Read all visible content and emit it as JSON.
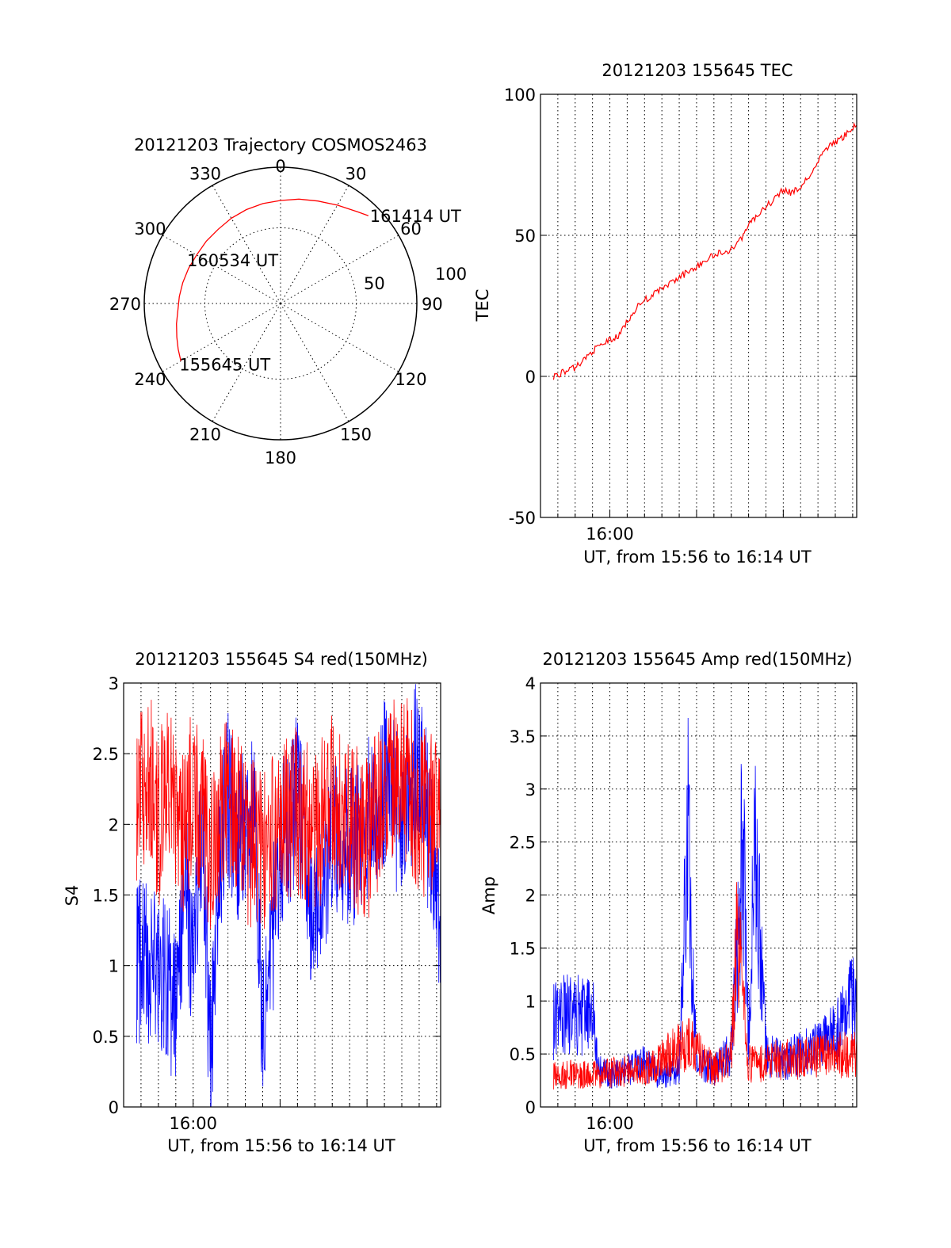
{
  "chart_data": [
    {
      "type": "polar",
      "title": "20121203 Trajectory COSMOS2463",
      "azimuth_labels": [
        "0",
        "30",
        "60",
        "90",
        "120",
        "150",
        "180",
        "210",
        "240",
        "270",
        "300",
        "330"
      ],
      "radial_labels": [
        "50",
        "100"
      ],
      "radial_range": [
        0,
        90
      ],
      "grid": true,
      "series": [
        {
          "color": "#ff0000",
          "azimuth": [
            240,
            246,
            252,
            259,
            266,
            274,
            282,
            291,
            300,
            310,
            320,
            330,
            340,
            350,
            0,
            10,
            20,
            30,
            40,
            45
          ],
          "zenith": [
            76,
            74,
            72,
            70,
            68,
            67,
            66,
            65,
            64,
            64,
            64,
            65,
            66,
            67,
            68,
            70,
            72,
            75,
            79,
            82
          ]
        }
      ],
      "annotations": [
        {
          "text": "155645 UT",
          "azimuth": 240,
          "zenith": 76
        },
        {
          "text": "160534 UT",
          "azimuth": 300,
          "zenith": 64
        },
        {
          "text": "161414 UT",
          "azimuth": 45,
          "zenith": 82
        }
      ]
    },
    {
      "type": "line",
      "title": "20121203 155645 TEC",
      "xlabel": "UT, from 15:56 to 16:14 UT",
      "ylabel": "TEC",
      "xlim": [
        "15:56:00",
        "16:14:14"
      ],
      "ylim": [
        -50,
        100
      ],
      "yticks": [
        "-50",
        "0",
        "50",
        "100"
      ],
      "xticks": [
        {
          "label": "16:00",
          "value": "16:00:00"
        }
      ],
      "grid": true,
      "series": [
        {
          "color": "#ff0000",
          "x": [
            "15:56:45",
            "15:57:30",
            "15:58:00",
            "15:58:30",
            "15:59:00",
            "15:59:30",
            "16:00:00",
            "16:00:30",
            "16:00:50",
            "16:01:30",
            "16:02:00",
            "16:02:30",
            "16:03:00",
            "16:03:30",
            "16:04:00",
            "16:04:30",
            "16:05:00",
            "16:05:30",
            "16:06:00",
            "16:06:30",
            "16:07:00",
            "16:07:30",
            "16:08:00",
            "16:08:30",
            "16:09:00",
            "16:09:30",
            "16:10:00",
            "16:10:30",
            "16:11:00",
            "16:11:30",
            "16:12:00",
            "16:12:30",
            "16:13:00",
            "16:13:30",
            "16:14:14"
          ],
          "y": [
            0,
            2,
            3,
            6,
            9,
            11,
            13,
            14,
            18,
            24,
            27,
            29,
            31,
            33,
            35,
            37,
            39,
            41,
            43,
            44,
            45,
            48,
            54,
            57,
            60,
            63,
            66,
            65,
            67,
            71,
            76,
            81,
            83,
            85,
            90
          ]
        }
      ]
    },
    {
      "type": "line",
      "title": "20121203 155645 S4 red(150MHz)",
      "xlabel": "UT, from 15:56 to 16:14 UT",
      "ylabel": "S4",
      "xlim": [
        "15:56:00",
        "16:14:14"
      ],
      "ylim": [
        0,
        3
      ],
      "yticks": [
        "0",
        "0.5",
        "1",
        "1.5",
        "2",
        "2.5",
        "3"
      ],
      "xticks": [
        {
          "label": "16:00",
          "value": "16:00:00"
        }
      ],
      "grid": true,
      "series": [
        {
          "color": "#0000ff",
          "x": [
            "15:56:45",
            "15:57:30",
            "15:58:00",
            "15:58:30",
            "15:59:00",
            "15:59:30",
            "16:00:00",
            "16:00:30",
            "16:01:00",
            "16:01:30",
            "16:02:00",
            "16:02:30",
            "16:03:00",
            "16:03:30",
            "16:04:00",
            "16:05:00",
            "16:06:00",
            "16:07:00",
            "16:08:00",
            "16:09:00",
            "16:10:00",
            "16:11:00",
            "16:12:00",
            "16:13:00",
            "16:14:14"
          ],
          "y": [
            1.05,
            1.0,
            0.95,
            0.9,
            0.6,
            1.6,
            1.0,
            2.0,
            0.3,
            1.7,
            2.2,
            1.8,
            2.0,
            2.2,
            0.45,
            1.8,
            2.2,
            1.2,
            2.0,
            1.8,
            2.0,
            2.3,
            2.0,
            2.5,
            1.2
          ]
        },
        {
          "color": "#ff0000",
          "x": [
            "15:56:45",
            "15:57:30",
            "15:58:00",
            "15:58:30",
            "15:59:00",
            "15:59:30",
            "16:00:00",
            "16:01:00",
            "16:02:00",
            "16:03:00",
            "16:04:00",
            "16:05:00",
            "16:06:00",
            "16:07:00",
            "16:08:00",
            "16:09:00",
            "16:10:00",
            "16:11:00",
            "16:12:00",
            "16:13:00",
            "16:14:14"
          ],
          "y": [
            2.2,
            2.4,
            2.0,
            2.3,
            2.1,
            1.9,
            2.3,
            1.8,
            2.2,
            1.9,
            1.8,
            2.0,
            2.1,
            1.9,
            2.2,
            2.0,
            1.9,
            2.2,
            2.4,
            2.1,
            2.0
          ]
        }
      ]
    },
    {
      "type": "line",
      "title": "20121203 155645 Amp red(150MHz)",
      "xlabel": "UT, from 15:56 to 16:14 UT",
      "ylabel": "Amp",
      "xlim": [
        "15:56:00",
        "16:14:14"
      ],
      "ylim": [
        0,
        4
      ],
      "yticks": [
        "0",
        "0.5",
        "1",
        "1.5",
        "2",
        "2.5",
        "3",
        "3.5",
        "4"
      ],
      "xticks": [
        {
          "label": "16:00",
          "value": "16:00:00"
        }
      ],
      "grid": true,
      "series": [
        {
          "color": "#0000ff",
          "x": [
            "15:56:45",
            "15:57:30",
            "15:58:30",
            "15:59:00",
            "15:59:20",
            "16:00:00",
            "16:01:00",
            "16:02:00",
            "16:03:00",
            "16:04:00",
            "16:04:30",
            "16:05:00",
            "16:05:30",
            "16:06:00",
            "16:07:00",
            "16:07:40",
            "16:08:00",
            "16:08:20",
            "16:09:00",
            "16:10:00",
            "16:11:00",
            "16:12:00",
            "16:13:00",
            "16:14:14"
          ],
          "y": [
            0.8,
            0.9,
            0.85,
            0.9,
            0.35,
            0.3,
            0.35,
            0.4,
            0.3,
            0.35,
            2.6,
            0.35,
            0.4,
            0.35,
            0.5,
            2.55,
            0.6,
            2.75,
            0.5,
            0.45,
            0.5,
            0.55,
            0.7,
            1.1
          ]
        },
        {
          "color": "#ff0000",
          "x": [
            "15:56:45",
            "16:00:00",
            "16:02:00",
            "16:04:30",
            "16:06:00",
            "16:07:00",
            "16:07:20",
            "16:08:00",
            "16:10:00",
            "16:14:14"
          ],
          "y": [
            0.3,
            0.32,
            0.35,
            0.6,
            0.35,
            0.5,
            1.7,
            0.4,
            0.45,
            0.5
          ]
        }
      ]
    }
  ]
}
